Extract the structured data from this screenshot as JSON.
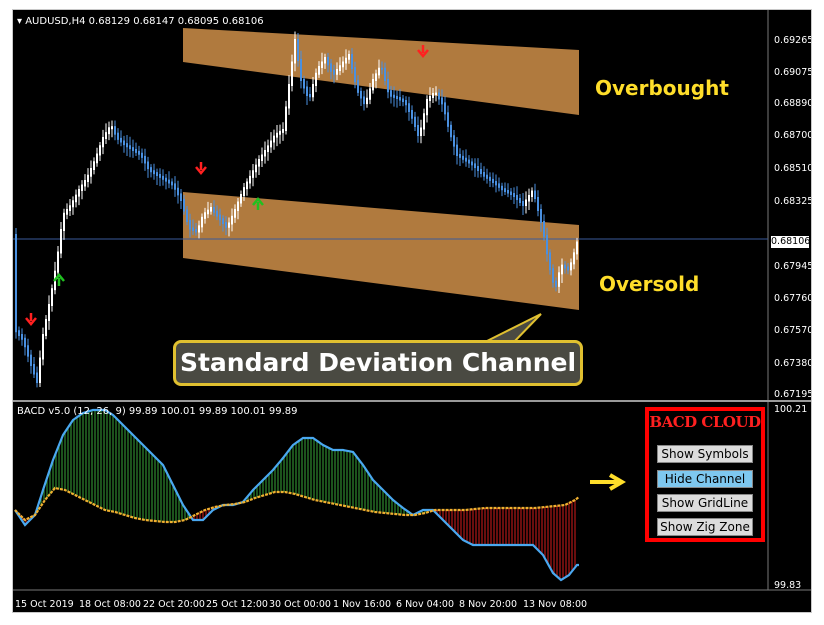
{
  "main_chart": {
    "symbol_info": "AUDUSD,H4  0.68129 0.68147 0.68095 0.68106",
    "price_labels": [
      "0.69265",
      "0.69075",
      "0.68890",
      "0.68700",
      "0.68510",
      "0.68325",
      "0.67945",
      "0.67760",
      "0.67570",
      "0.67380",
      "0.67195"
    ],
    "current_price": "0.68106",
    "annotations": {
      "overbought": "Overbought",
      "oversold": "Oversold",
      "callout": "Standard Deviation Channel"
    }
  },
  "indicator": {
    "info": "BACD v5.0 (12, 26, 9) 99.89 100.01 99.89 100.01 99.89",
    "scale_top": "100.21",
    "scale_bottom": "99.83"
  },
  "time_axis": [
    "15 Oct 2019",
    "18 Oct 08:00",
    "22 Oct 20:00",
    "25 Oct 12:00",
    "30 Oct 00:00",
    "1 Nov 16:00",
    "6 Nov 04:00",
    "8 Nov 20:00",
    "13 Nov 08:00"
  ],
  "bacd_panel": {
    "title": "BACD CLOUD",
    "buttons": [
      {
        "label": "Show Symbols",
        "active": false
      },
      {
        "label": "Hide Channel",
        "active": true
      },
      {
        "label": "Show GridLine",
        "active": false
      },
      {
        "label": "Show Zig Zone",
        "active": false
      }
    ]
  },
  "colors": {
    "channel_fill": "#b07a3e",
    "bull_candle": "#ffffff",
    "bear_candle": "#4a90e0",
    "cloud_up": "#1e5a1e",
    "cloud_down": "#7a1010",
    "fast_line": "#4aa8f0",
    "slow_line": "#f0b030",
    "accent_yellow": "#ffde2a",
    "panel_border": "#ff0000"
  },
  "icons": [
    "down-arrow-icon",
    "up-arrow-icon",
    "right-arrow-icon"
  ]
}
